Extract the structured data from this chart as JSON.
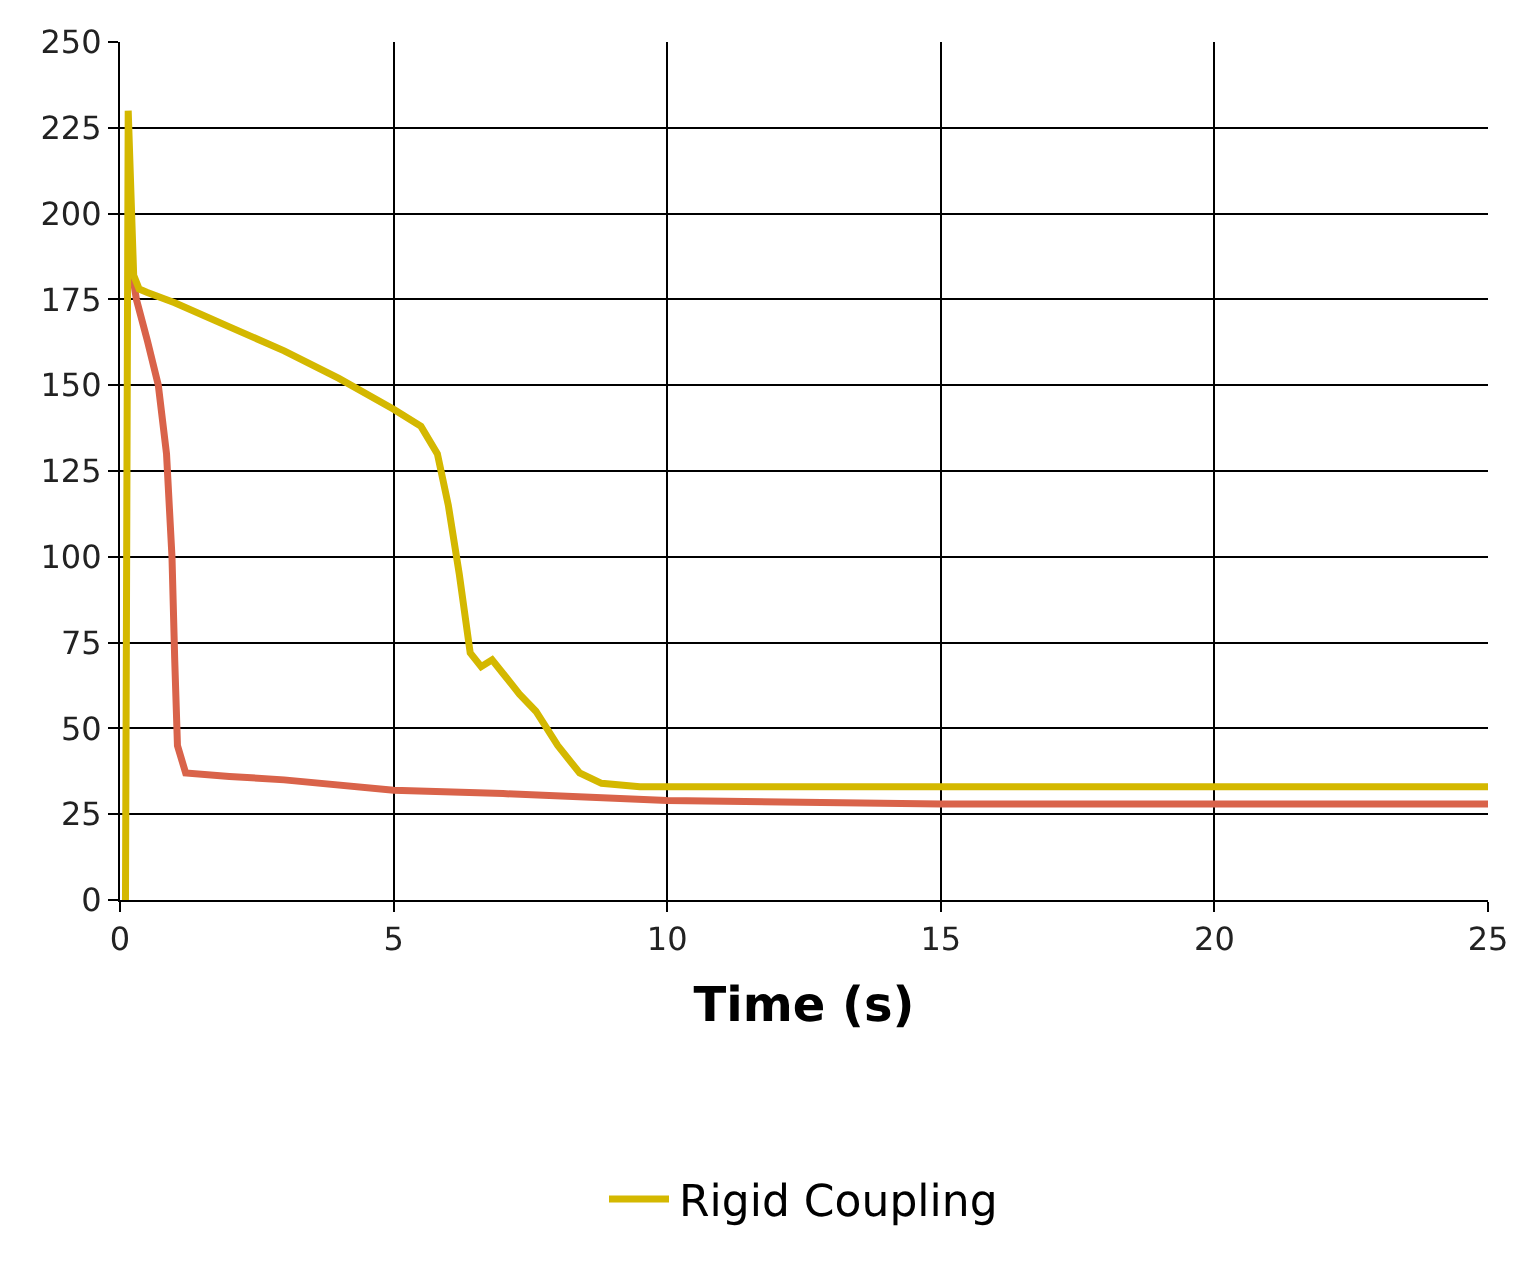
{
  "chart_data": {
    "type": "line",
    "xlabel": "Time (s)",
    "xlim": [
      0,
      25
    ],
    "xticks": [
      0,
      5,
      10,
      15,
      20,
      25
    ],
    "ylim": [
      0,
      250
    ],
    "yticks": [
      0,
      25,
      50,
      75,
      100,
      125,
      150,
      175,
      200,
      225,
      250
    ],
    "grid": true,
    "legend": "bottom",
    "marker": "none",
    "line_style": "solid",
    "series": [
      {
        "color": "#d9634a",
        "x": [
          0.2,
          0.3,
          0.5,
          0.7,
          0.85,
          0.95,
          1.0,
          1.05,
          1.2,
          2,
          3,
          5,
          7,
          10,
          15,
          20,
          25
        ],
        "values": [
          185,
          175,
          163,
          150,
          130,
          100,
          70,
          45,
          37,
          36,
          35,
          32,
          31,
          29,
          28,
          28,
          28
        ]
      },
      {
        "name": "Rigid Coupling",
        "color": "#d4b800",
        "x": [
          0.1,
          0.15,
          0.25,
          0.35,
          0.5,
          1,
          2,
          3,
          4,
          5,
          5.5,
          5.8,
          6,
          6.2,
          6.4,
          6.6,
          6.8,
          7,
          7.3,
          7.6,
          8,
          8.4,
          8.8,
          9.5,
          12,
          25
        ],
        "values": [
          0,
          230,
          182,
          178,
          177,
          174,
          167,
          160,
          152,
          143,
          138,
          130,
          115,
          95,
          72,
          68,
          70,
          66,
          60,
          55,
          45,
          37,
          34,
          33,
          33,
          33
        ]
      }
    ]
  }
}
